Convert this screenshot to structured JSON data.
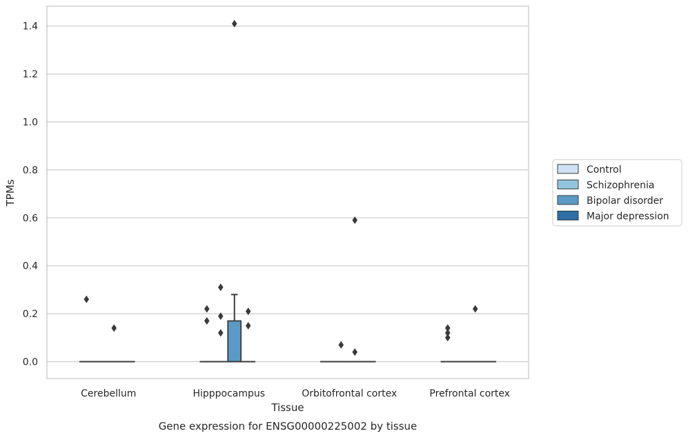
{
  "chart_data": {
    "type": "box",
    "title": "",
    "caption": "Gene expression for ENSG00000225002 by tissue",
    "xlabel": "Tissue",
    "ylabel": "TPMs",
    "ylim": [
      -0.07,
      1.48
    ],
    "yticks": [
      "0.0",
      "0.2",
      "0.4",
      "0.6",
      "0.8",
      "1.0",
      "1.2",
      "1.4"
    ],
    "ytick_values": [
      0.0,
      0.2,
      0.4,
      0.6,
      0.8,
      1.0,
      1.2,
      1.4
    ],
    "grid": "horizontal",
    "legend_position": "right",
    "categories": [
      "Cerebellum",
      "Hipppocampus",
      "Orbitofrontal cortex",
      "Prefrontal cortex"
    ],
    "series": [
      {
        "name": "Control",
        "color": "#cfe1f2",
        "boxes": [
          {
            "category": "Cerebellum",
            "q1": 0,
            "median": 0,
            "q3": 0,
            "whisker_low": 0,
            "whisker_high": 0,
            "outliers": [
              0.26
            ]
          },
          {
            "category": "Hipppocampus",
            "q1": 0,
            "median": 0,
            "q3": 0,
            "whisker_low": 0,
            "whisker_high": 0,
            "outliers": [
              0.22,
              0.17
            ]
          },
          {
            "category": "Orbitofrontal cortex",
            "q1": 0,
            "median": 0,
            "q3": 0,
            "whisker_low": 0,
            "whisker_high": 0,
            "outliers": []
          },
          {
            "category": "Prefrontal cortex",
            "q1": 0,
            "median": 0,
            "q3": 0,
            "whisker_low": 0,
            "whisker_high": 0,
            "outliers": [
              0.14,
              0.12,
              0.1
            ]
          }
        ]
      },
      {
        "name": "Schizophrenia",
        "color": "#93c4de",
        "boxes": [
          {
            "category": "Cerebellum",
            "q1": 0,
            "median": 0,
            "q3": 0,
            "whisker_low": 0,
            "whisker_high": 0,
            "outliers": []
          },
          {
            "category": "Hipppocampus",
            "q1": 0,
            "median": 0,
            "q3": 0,
            "whisker_low": 0,
            "whisker_high": 0,
            "outliers": [
              0.31,
              0.19,
              0.12
            ]
          },
          {
            "category": "Orbitofrontal cortex",
            "q1": 0,
            "median": 0,
            "q3": 0,
            "whisker_low": 0,
            "whisker_high": 0,
            "outliers": [
              0.07
            ]
          },
          {
            "category": "Prefrontal cortex",
            "q1": 0,
            "median": 0,
            "q3": 0,
            "whisker_low": 0,
            "whisker_high": 0,
            "outliers": []
          }
        ]
      },
      {
        "name": "Bipolar disorder",
        "color": "#5a9ac6",
        "boxes": [
          {
            "category": "Cerebellum",
            "q1": 0,
            "median": 0,
            "q3": 0,
            "whisker_low": 0,
            "whisker_high": 0,
            "outliers": [
              0.14
            ]
          },
          {
            "category": "Hipppocampus",
            "q1": 0,
            "median": 0,
            "q3": 0.17,
            "whisker_low": 0,
            "whisker_high": 0.28,
            "outliers": [
              1.41
            ]
          },
          {
            "category": "Orbitofrontal cortex",
            "q1": 0,
            "median": 0,
            "q3": 0,
            "whisker_low": 0,
            "whisker_high": 0,
            "outliers": [
              0.59,
              0.04
            ]
          },
          {
            "category": "Prefrontal cortex",
            "q1": 0,
            "median": 0,
            "q3": 0,
            "whisker_low": 0,
            "whisker_high": 0,
            "outliers": [
              0.22
            ]
          }
        ]
      },
      {
        "name": "Major depression",
        "color": "#2c6ea5",
        "boxes": [
          {
            "category": "Cerebellum",
            "q1": 0,
            "median": 0,
            "q3": 0,
            "whisker_low": 0,
            "whisker_high": 0,
            "outliers": []
          },
          {
            "category": "Hipppocampus",
            "q1": 0,
            "median": 0,
            "q3": 0,
            "whisker_low": 0,
            "whisker_high": 0,
            "outliers": [
              0.21,
              0.15
            ]
          },
          {
            "category": "Orbitofrontal cortex",
            "q1": 0,
            "median": 0,
            "q3": 0,
            "whisker_low": 0,
            "whisker_high": 0,
            "outliers": []
          },
          {
            "category": "Prefrontal cortex",
            "q1": 0,
            "median": 0,
            "q3": 0,
            "whisker_low": 0,
            "whisker_high": 0,
            "outliers": []
          }
        ]
      }
    ]
  }
}
